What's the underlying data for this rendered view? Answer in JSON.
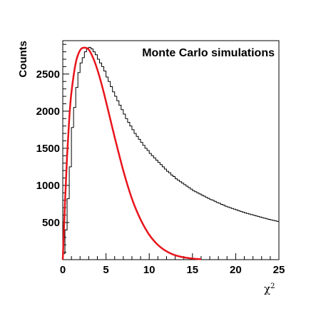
{
  "chart_data": {
    "type": "line",
    "annotation": "Monte Carlo simulations",
    "ylabel": "Counts",
    "xlabel": "χ",
    "xlabel_sup": "2",
    "xlim": [
      0,
      25
    ],
    "ylim": [
      0,
      2950
    ],
    "grid": false,
    "x_ticks": [
      0,
      5,
      10,
      15,
      20,
      25
    ],
    "y_ticks": [
      500,
      1000,
      1500,
      2000,
      2500
    ],
    "colors": {
      "histogram": "#000000",
      "fit": "#e8141b"
    },
    "series": [
      {
        "style": "step-histogram",
        "bin_width": 0.25,
        "x_start": 0,
        "values": [
          80,
          400,
          820,
          1250,
          1780,
          2050,
          2320,
          2520,
          2650,
          2720,
          2800,
          2850,
          2860,
          2840,
          2800,
          2760,
          2700,
          2650,
          2600,
          2540,
          2460,
          2400,
          2330,
          2260,
          2200,
          2140,
          2080,
          2020,
          1960,
          1900,
          1850,
          1800,
          1750,
          1700,
          1660,
          1620,
          1580,
          1540,
          1500,
          1470,
          1430,
          1400,
          1370,
          1340,
          1310,
          1280,
          1250,
          1220,
          1190,
          1170,
          1140,
          1120,
          1090,
          1070,
          1050,
          1030,
          1010,
          990,
          970,
          950,
          930,
          915,
          900,
          885,
          870,
          855,
          840,
          825,
          810,
          800,
          785,
          770,
          760,
          745,
          735,
          720,
          710,
          700,
          690,
          680,
          670,
          660,
          650,
          640,
          630,
          622,
          614,
          606,
          598,
          590,
          582,
          574,
          566,
          558,
          550,
          543,
          536,
          529,
          522,
          515
        ]
      },
      {
        "style": "smooth-curve",
        "x": [
          0,
          0.25,
          0.5,
          0.75,
          1,
          1.5,
          2,
          2.5,
          3,
          3.5,
          4,
          4.5,
          5,
          5.5,
          6,
          6.5,
          7,
          7.5,
          8,
          8.5,
          9,
          9.5,
          10,
          10.5,
          11,
          11.5,
          12,
          12.5,
          13,
          13.5,
          14,
          14.5,
          15,
          15.5,
          16
        ],
        "y": [
          0,
          750,
          1400,
          1900,
          2250,
          2650,
          2820,
          2855,
          2830,
          2720,
          2560,
          2360,
          2130,
          1890,
          1650,
          1420,
          1200,
          1000,
          820,
          670,
          540,
          430,
          335,
          260,
          198,
          150,
          112,
          82,
          60,
          43,
          31,
          22,
          15,
          10,
          6
        ]
      }
    ]
  }
}
